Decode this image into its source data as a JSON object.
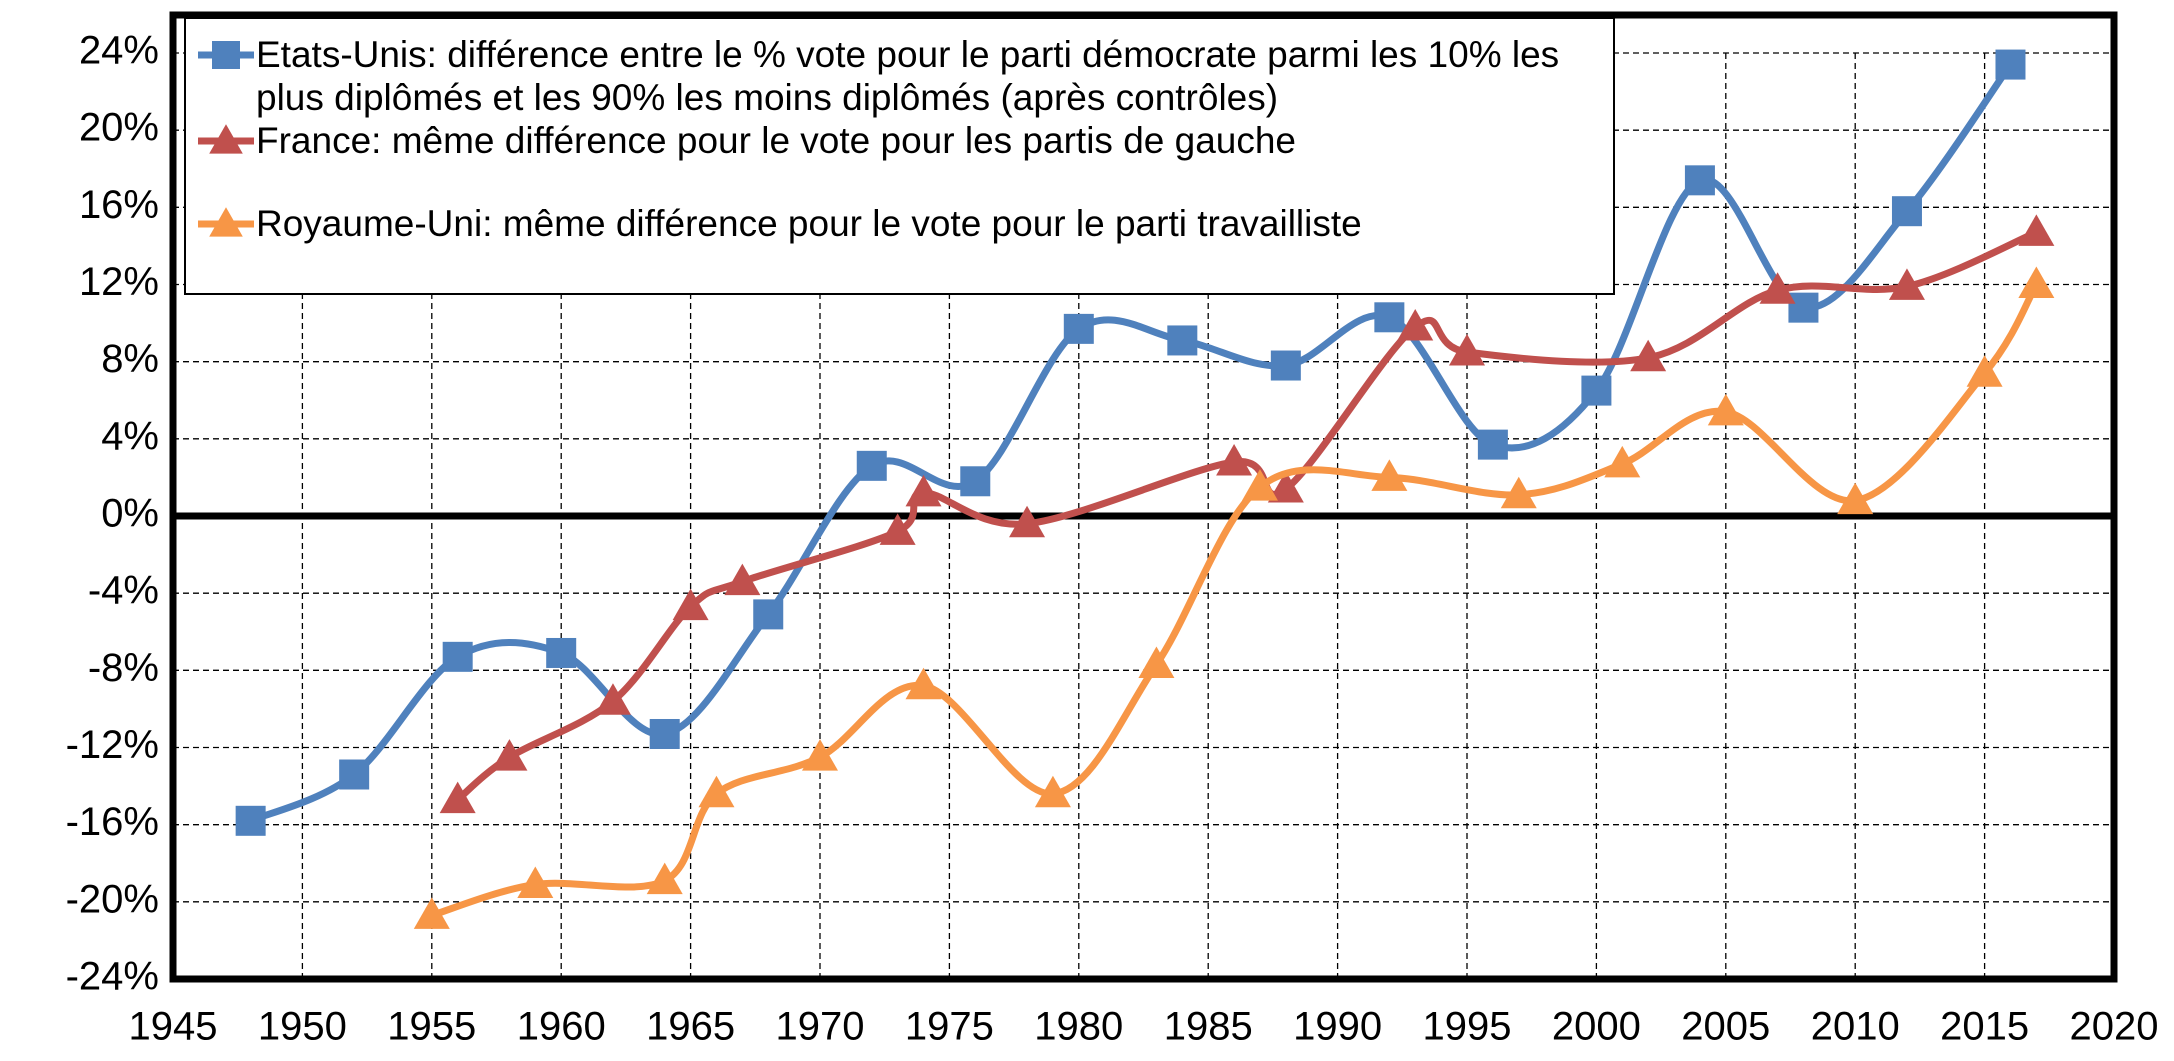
{
  "chart_data": {
    "type": "line",
    "series": [
      {
        "name": "Etats-Unis: différence entre le % vote pour le parti démocrate parmi les 10% les plus diplômés et les 90% les moins diplômés (après contrôles)",
        "color": "#4f81bd",
        "marker": "square",
        "x": [
          1948,
          1952,
          1956,
          1960,
          1964,
          1968,
          1972,
          1976,
          1980,
          1984,
          1988,
          1992,
          1996,
          2000,
          2004,
          2008,
          2012,
          2016
        ],
        "values": [
          -15.8,
          -13.4,
          -7.3,
          -7.1,
          -11.3,
          -5.1,
          2.6,
          1.8,
          9.7,
          9.1,
          7.8,
          10.3,
          3.7,
          6.5,
          17.4,
          10.8,
          15.8,
          23.4
        ]
      },
      {
        "name": "France: même différence pour le vote pour les partis de gauche",
        "color": "#c0504d",
        "marker": "triangle",
        "x": [
          1956,
          1958,
          1962,
          1965,
          1967,
          1973,
          1974,
          1978,
          1986,
          1988,
          1993,
          1995,
          2002,
          2007,
          2012,
          2017
        ],
        "values": [
          -14.7,
          -12.5,
          -9.6,
          -4.7,
          -3.4,
          -0.8,
          1.2,
          -0.4,
          2.8,
          1.4,
          9.8,
          8.5,
          8.2,
          11.7,
          11.9,
          14.7
        ]
      },
      {
        "name": "Royaume-Uni: même différence pour le vote pour le parti travailliste",
        "color": "#f79646",
        "marker": "triangle",
        "x": [
          1955,
          1959,
          1964,
          1966,
          1970,
          1974,
          1979,
          1983,
          1987,
          1992,
          1997,
          2001,
          2005,
          2010,
          2015,
          2017
        ],
        "values": [
          -20.7,
          -19.1,
          -18.9,
          -14.4,
          -12.5,
          -8.8,
          -14.4,
          -7.7,
          1.5,
          2.0,
          1.1,
          2.7,
          5.4,
          0.8,
          7.4,
          12.0
        ]
      }
    ],
    "xlim": [
      1945,
      2020
    ],
    "xticks": [
      1945,
      1950,
      1955,
      1960,
      1965,
      1970,
      1975,
      1980,
      1985,
      1990,
      1995,
      2000,
      2005,
      2010,
      2015,
      2020
    ],
    "ylim": [
      -24,
      24
    ],
    "yticks": [
      {
        "value": -24,
        "label": "-24%"
      },
      {
        "value": -20,
        "label": "-20%"
      },
      {
        "value": -16,
        "label": "-16%"
      },
      {
        "value": -12,
        "label": "-12%"
      },
      {
        "value": -8,
        "label": "-8%"
      },
      {
        "value": -4,
        "label": "-4%"
      },
      {
        "value": 0,
        "label": "0%"
      },
      {
        "value": 4,
        "label": "4%"
      },
      {
        "value": 8,
        "label": "8%"
      },
      {
        "value": 12,
        "label": "12%"
      },
      {
        "value": 16,
        "label": "16%"
      },
      {
        "value": 20,
        "label": "20%"
      },
      {
        "value": 24,
        "label": "24%"
      }
    ],
    "grid": true,
    "legend": "top-left"
  }
}
